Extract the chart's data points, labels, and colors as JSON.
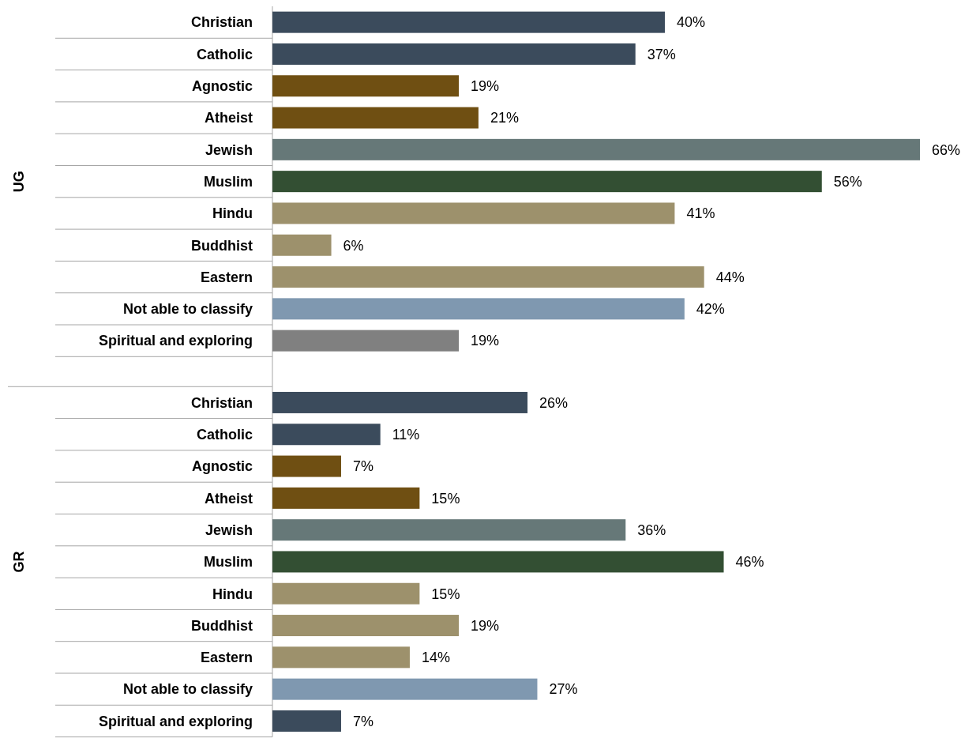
{
  "chart_data": [
    {
      "type": "bar",
      "orientation": "horizontal",
      "ylabel": "UG",
      "categories": [
        "Christian",
        "Catholic",
        "Agnostic",
        "Atheist",
        "Jewish",
        "Muslim",
        "Hindu",
        "Buddhist",
        "Eastern",
        "Not able to classify",
        "Spiritual and exploring"
      ],
      "values": [
        40,
        37,
        19,
        21,
        66,
        56,
        41,
        6,
        44,
        42,
        19
      ],
      "value_labels": [
        "40%",
        "37%",
        "19%",
        "21%",
        "66%",
        "56%",
        "41%",
        "6%",
        "44%",
        "42%",
        "19%"
      ],
      "colors": [
        "#3b4b5c",
        "#3b4b5c",
        "#6f4f12",
        "#6f4f12",
        "#667878",
        "#334f33",
        "#9d916c",
        "#9d916c",
        "#9d916c",
        "#7f98b0",
        "#808080"
      ]
    },
    {
      "type": "bar",
      "orientation": "horizontal",
      "ylabel": "GR",
      "categories": [
        "Christian",
        "Catholic",
        "Agnostic",
        "Atheist",
        "Jewish",
        "Muslim",
        "Hindu",
        "Buddhist",
        "Eastern",
        "Not able to classify",
        "Spiritual and exploring"
      ],
      "values": [
        26,
        11,
        7,
        15,
        36,
        46,
        15,
        19,
        14,
        27,
        7
      ],
      "value_labels": [
        "26%",
        "11%",
        "7%",
        "15%",
        "36%",
        "46%",
        "15%",
        "19%",
        "14%",
        "27%",
        "7%"
      ],
      "colors": [
        "#3b4b5c",
        "#3b4b5c",
        "#6f4f12",
        "#6f4f12",
        "#667878",
        "#334f33",
        "#9d916c",
        "#9d916c",
        "#9d916c",
        "#7f98b0",
        "#3b4b5c"
      ]
    }
  ]
}
